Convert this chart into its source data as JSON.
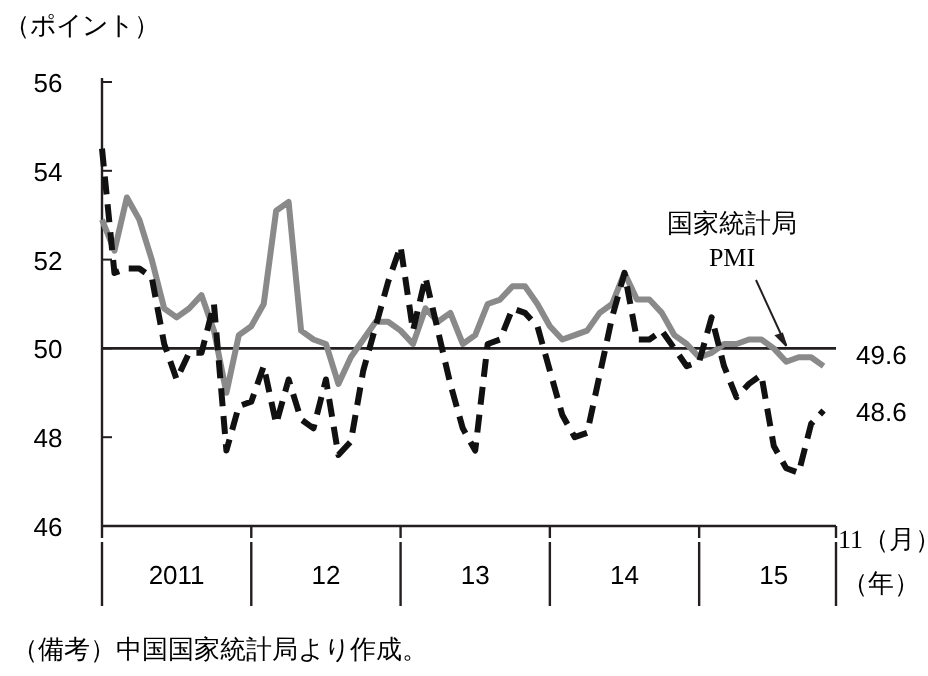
{
  "chart_data": {
    "type": "line",
    "ylabel": "（ポイント）",
    "xlabel": "（年）",
    "x": [
      "2011-01",
      "2011-02",
      "2011-03",
      "2011-04",
      "2011-05",
      "2011-06",
      "2011-07",
      "2011-08",
      "2011-09",
      "2011-10",
      "2011-11",
      "2011-12",
      "2012-01",
      "2012-02",
      "2012-03",
      "2012-04",
      "2012-05",
      "2012-06",
      "2012-07",
      "2012-08",
      "2012-09",
      "2012-10",
      "2012-11",
      "2012-12",
      "2013-01",
      "2013-02",
      "2013-03",
      "2013-04",
      "2013-05",
      "2013-06",
      "2013-07",
      "2013-08",
      "2013-09",
      "2013-10",
      "2013-11",
      "2013-12",
      "2014-01",
      "2014-02",
      "2014-03",
      "2014-04",
      "2014-05",
      "2014-06",
      "2014-07",
      "2014-08",
      "2014-09",
      "2014-10",
      "2014-11",
      "2014-12",
      "2015-01",
      "2015-02",
      "2015-03",
      "2015-04",
      "2015-05",
      "2015-06",
      "2015-07",
      "2015-08",
      "2015-09",
      "2015-10",
      "2015-11"
    ],
    "series": [
      {
        "name": "国家統計局 PMI",
        "color": "#8a8a8a",
        "line_style": "solid",
        "values": [
          52.9,
          52.2,
          53.4,
          52.9,
          52.0,
          50.9,
          50.7,
          50.9,
          51.2,
          50.4,
          49.0,
          50.3,
          50.5,
          51.0,
          53.1,
          53.3,
          50.4,
          50.2,
          50.1,
          49.2,
          49.8,
          50.2,
          50.6,
          50.6,
          50.4,
          50.1,
          50.9,
          50.6,
          50.8,
          50.1,
          50.3,
          51.0,
          51.1,
          51.4,
          51.4,
          51.0,
          50.5,
          50.2,
          50.3,
          50.4,
          50.8,
          51.0,
          51.7,
          51.1,
          51.1,
          50.8,
          50.3,
          50.1,
          49.8,
          49.9,
          50.1,
          50.1,
          50.2,
          50.2,
          50.0,
          49.7,
          49.8,
          49.8,
          49.6
        ],
        "value_labels": [
          null,
          null,
          null,
          null,
          null,
          null,
          null,
          null,
          null,
          null,
          null,
          null,
          null,
          null,
          null,
          null,
          null,
          null,
          null,
          null,
          null,
          null,
          null,
          null,
          null,
          null,
          null,
          null,
          null,
          null,
          null,
          null,
          null,
          null,
          null,
          null,
          null,
          null,
          null,
          null,
          null,
          null,
          null,
          null,
          null,
          null,
          null,
          null,
          null,
          null,
          null,
          null,
          null,
          null,
          null,
          null,
          null,
          null,
          "49.6"
        ]
      },
      {
        "color": "#111111",
        "line_style": "dashed",
        "values": [
          54.5,
          51.7,
          51.8,
          51.8,
          51.6,
          50.1,
          49.3,
          49.9,
          49.9,
          51.0,
          47.7,
          48.7,
          48.8,
          49.6,
          48.3,
          49.3,
          48.4,
          48.2,
          49.3,
          47.6,
          47.9,
          49.5,
          50.5,
          51.5,
          52.3,
          50.4,
          51.6,
          50.4,
          49.2,
          48.2,
          47.7,
          50.1,
          50.2,
          50.9,
          50.8,
          50.5,
          49.5,
          48.5,
          48.0,
          48.1,
          49.4,
          50.7,
          51.7,
          50.2,
          50.2,
          50.4,
          50.0,
          49.6,
          49.7,
          50.7,
          49.6,
          48.9,
          49.2,
          49.4,
          47.8,
          47.3,
          47.2,
          48.3,
          48.6
        ],
        "value_labels": [
          null,
          null,
          null,
          null,
          null,
          null,
          null,
          null,
          null,
          null,
          null,
          null,
          null,
          null,
          null,
          null,
          null,
          null,
          null,
          null,
          null,
          null,
          null,
          null,
          null,
          null,
          null,
          null,
          null,
          null,
          null,
          null,
          null,
          null,
          null,
          null,
          null,
          null,
          null,
          null,
          null,
          null,
          null,
          null,
          null,
          null,
          null,
          null,
          null,
          null,
          null,
          null,
          null,
          null,
          null,
          null,
          null,
          null,
          "48.6"
        ]
      }
    ],
    "xlim": [
      "2011-01",
      "2015-12"
    ],
    "xticks": [
      {
        "value": "2011-01",
        "label": null
      },
      {
        "value": "2011-07",
        "label": "2011"
      },
      {
        "value": "2012-01",
        "label": null
      },
      {
        "value": "2012-07",
        "label": "12"
      },
      {
        "value": "2013-01",
        "label": null
      },
      {
        "value": "2013-07",
        "label": "13"
      },
      {
        "value": "2014-01",
        "label": null
      },
      {
        "value": "2014-07",
        "label": "14"
      },
      {
        "value": "2015-01",
        "label": null
      },
      {
        "value": "2015-07",
        "label": "15"
      },
      {
        "value": "2015-12",
        "label": null
      }
    ],
    "ylim": [
      46,
      56
    ],
    "yticks": [
      46,
      48,
      50,
      52,
      54,
      56
    ],
    "ref_lines": [
      {
        "axis": "y",
        "value": 50,
        "color": "#231f20"
      }
    ],
    "grid": false,
    "marker": "none",
    "annotations": [
      "（備考）中国国家統計局より作成。",
      "11（月）"
    ]
  }
}
